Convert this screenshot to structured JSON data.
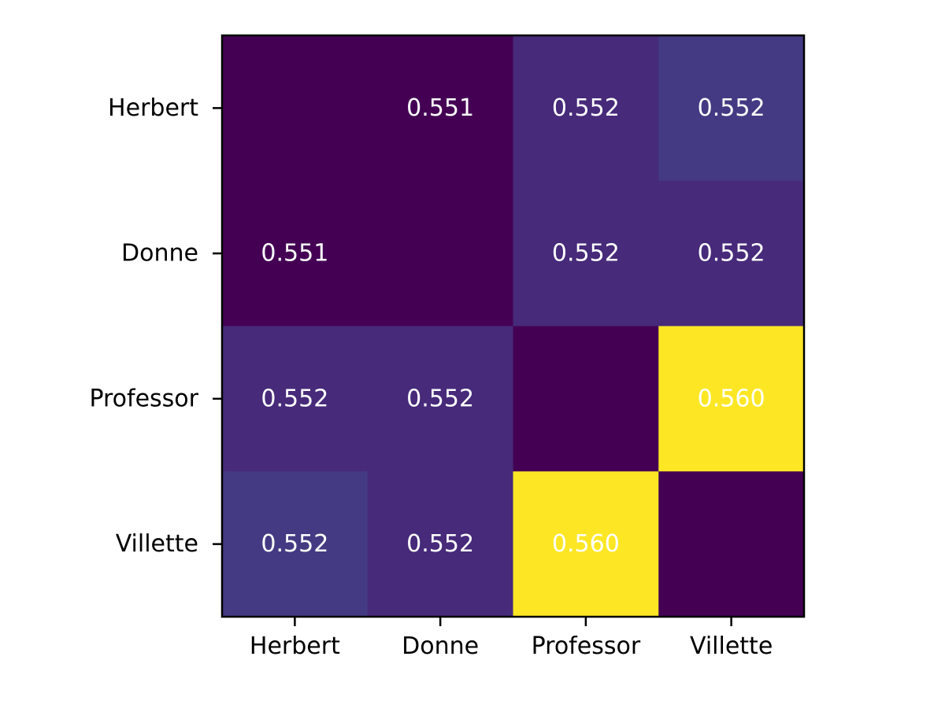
{
  "chart_data": {
    "type": "heatmap",
    "title": "",
    "xlabel": "",
    "ylabel": "",
    "x_categories": [
      "Herbert",
      "Donne",
      "Professor",
      "Villette"
    ],
    "y_categories": [
      "Herbert",
      "Donne",
      "Professor",
      "Villette"
    ],
    "colormap": "viridis",
    "color_range": [
      0.551,
      0.56
    ],
    "values": [
      [
        null,
        0.551,
        0.552,
        0.552
      ],
      [
        0.551,
        null,
        0.552,
        0.552
      ],
      [
        0.552,
        0.552,
        null,
        0.56
      ],
      [
        0.552,
        0.552,
        0.56,
        null
      ]
    ],
    "labels": [
      [
        "",
        "0.551",
        "0.552",
        "0.552"
      ],
      [
        "0.551",
        "",
        "0.552",
        "0.552"
      ],
      [
        "0.552",
        "0.552",
        "",
        "0.560"
      ],
      [
        "0.552",
        "0.552",
        "0.560",
        ""
      ]
    ],
    "cell_colors": [
      [
        "#440154",
        "#440154",
        "#472a7a",
        "#443a83"
      ],
      [
        "#440154",
        "#440154",
        "#472a7a",
        "#472a7a"
      ],
      [
        "#472a7a",
        "#472a7a",
        "#440154",
        "#fde725"
      ],
      [
        "#443a83",
        "#472a7a",
        "#fde725",
        "#440154"
      ]
    ],
    "label_color": "#ffffff",
    "grid": false,
    "legend": "none"
  }
}
